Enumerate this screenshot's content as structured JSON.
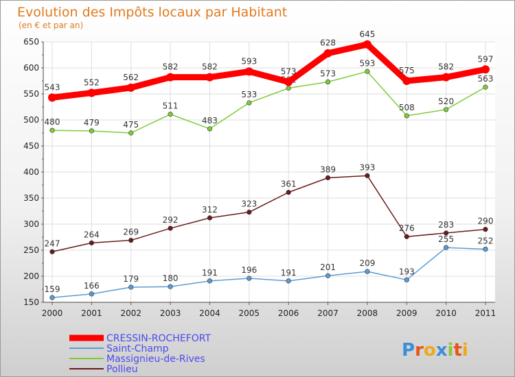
{
  "chart_data": {
    "type": "line",
    "title": "Evolution des Impôts locaux par Habitant",
    "subtitle": "(en € et par an)",
    "xlabel": "",
    "ylabel": "",
    "ylim": [
      150,
      650
    ],
    "yticks": [
      150,
      200,
      250,
      300,
      350,
      400,
      450,
      500,
      550,
      600,
      650
    ],
    "grid": true,
    "legend_position": "bottom-left",
    "x": [
      "2000",
      "2001",
      "2002",
      "2003",
      "2004",
      "2005",
      "2006",
      "2007",
      "2008",
      "2009",
      "2010",
      "2011"
    ],
    "series": [
      {
        "name": "CRESSIN-ROCHEFORT",
        "color": "#ff0000",
        "values": [
          543,
          552,
          562,
          582,
          582,
          593,
          573,
          628,
          645,
          575,
          582,
          597
        ]
      },
      {
        "name": "Saint-Champ",
        "color": "#5b9bd5",
        "values": [
          159,
          166,
          179,
          180,
          191,
          196,
          191,
          201,
          209,
          193,
          255,
          252
        ]
      },
      {
        "name": "Massignieu-de-Rives",
        "color": "#7ecb3a",
        "values": [
          480,
          479,
          475,
          511,
          483,
          533,
          561,
          573,
          593,
          508,
          520,
          563
        ]
      },
      {
        "name": "Pollieu",
        "color": "#6b1a1a",
        "values": [
          247,
          264,
          269,
          292,
          312,
          323,
          361,
          389,
          393,
          276,
          283,
          290
        ]
      }
    ]
  },
  "logo": {
    "letters": [
      "P",
      "r",
      "o",
      "x",
      "i",
      "t",
      "i"
    ],
    "colors": [
      "#3a8fd8",
      "#e8541a",
      "#f0a818",
      "#3a8fd8",
      "#8cc63f",
      "#e8541a",
      "#f0a818"
    ]
  }
}
